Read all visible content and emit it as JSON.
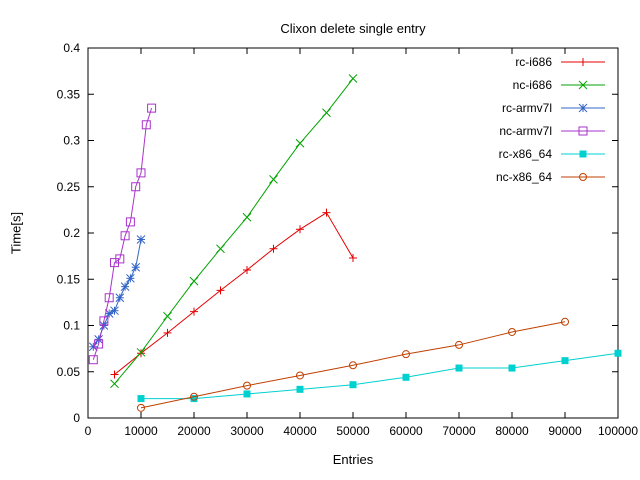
{
  "title": "Clixon delete single entry",
  "chart_data": {
    "type": "line",
    "title": "Clixon delete single entry",
    "xlabel": "Entries",
    "ylabel": "Time[s]",
    "xlim": [
      0,
      100000
    ],
    "ylim": [
      0,
      0.4
    ],
    "xticks": [
      0,
      10000,
      20000,
      30000,
      40000,
      50000,
      60000,
      70000,
      80000,
      90000,
      100000
    ],
    "xtick_labels": [
      "0",
      "10000",
      "20000",
      "30000",
      "40000",
      "50000",
      "60000",
      "70000",
      "80000",
      "90000",
      "100000"
    ],
    "yticks": [
      0,
      0.05,
      0.1,
      0.15,
      0.2,
      0.25,
      0.3,
      0.35,
      0.4
    ],
    "ytick_labels": [
      "0",
      "0.05",
      "0.1",
      "0.15",
      "0.2",
      "0.25",
      "0.3",
      "0.35",
      "0.4"
    ],
    "grid": false,
    "legend_position": "top-right",
    "axis_color": "#000000",
    "series": [
      {
        "name": "rc-i686",
        "color": "#e50000",
        "marker": "plus",
        "points": [
          [
            5000,
            0.047
          ],
          [
            10000,
            0.07
          ],
          [
            15000,
            0.092
          ],
          [
            20000,
            0.115
          ],
          [
            25000,
            0.138
          ],
          [
            30000,
            0.16
          ],
          [
            35000,
            0.183
          ],
          [
            40000,
            0.204
          ],
          [
            45000,
            0.222
          ],
          [
            50000,
            0.173
          ]
        ]
      },
      {
        "name": "nc-i686",
        "color": "#00a400",
        "marker": "cross",
        "points": [
          [
            5000,
            0.037
          ],
          [
            10000,
            0.071
          ],
          [
            15000,
            0.11
          ],
          [
            20000,
            0.148
          ],
          [
            25000,
            0.183
          ],
          [
            30000,
            0.217
          ],
          [
            35000,
            0.258
          ],
          [
            40000,
            0.297
          ],
          [
            45000,
            0.33
          ],
          [
            50000,
            0.367
          ]
        ]
      },
      {
        "name": "rc-armv7l",
        "color": "#3264c8",
        "marker": "asterisk",
        "points": [
          [
            1000,
            0.077
          ],
          [
            2000,
            0.085
          ],
          [
            3000,
            0.1
          ],
          [
            4000,
            0.113
          ],
          [
            5000,
            0.116
          ],
          [
            6000,
            0.13
          ],
          [
            7000,
            0.142
          ],
          [
            8000,
            0.151
          ],
          [
            9000,
            0.163
          ],
          [
            10000,
            0.193
          ]
        ]
      },
      {
        "name": "nc-armv7l",
        "color": "#aa33cc",
        "marker": "square-open",
        "points": [
          [
            1000,
            0.063
          ],
          [
            2000,
            0.08
          ],
          [
            3000,
            0.105
          ],
          [
            4000,
            0.13
          ],
          [
            5000,
            0.168
          ],
          [
            6000,
            0.172
          ],
          [
            7000,
            0.197
          ],
          [
            8000,
            0.212
          ],
          [
            9000,
            0.25
          ],
          [
            10000,
            0.265
          ],
          [
            11000,
            0.317
          ],
          [
            12000,
            0.335
          ]
        ]
      },
      {
        "name": "rc-x86_64",
        "color": "#00d0d0",
        "marker": "square-filled",
        "points": [
          [
            10000,
            0.021
          ],
          [
            20000,
            0.021
          ],
          [
            30000,
            0.026
          ],
          [
            40000,
            0.031
          ],
          [
            50000,
            0.036
          ],
          [
            60000,
            0.044
          ],
          [
            70000,
            0.054
          ],
          [
            80000,
            0.054
          ],
          [
            90000,
            0.062
          ],
          [
            100000,
            0.07
          ]
        ]
      },
      {
        "name": "nc-x86_64",
        "color": "#c04000",
        "marker": "circle-open",
        "points": [
          [
            10000,
            0.011
          ],
          [
            20000,
            0.023
          ],
          [
            30000,
            0.035
          ],
          [
            40000,
            0.046
          ],
          [
            50000,
            0.057
          ],
          [
            60000,
            0.069
          ],
          [
            70000,
            0.079
          ],
          [
            80000,
            0.093
          ],
          [
            90000,
            0.104
          ]
        ]
      }
    ]
  }
}
